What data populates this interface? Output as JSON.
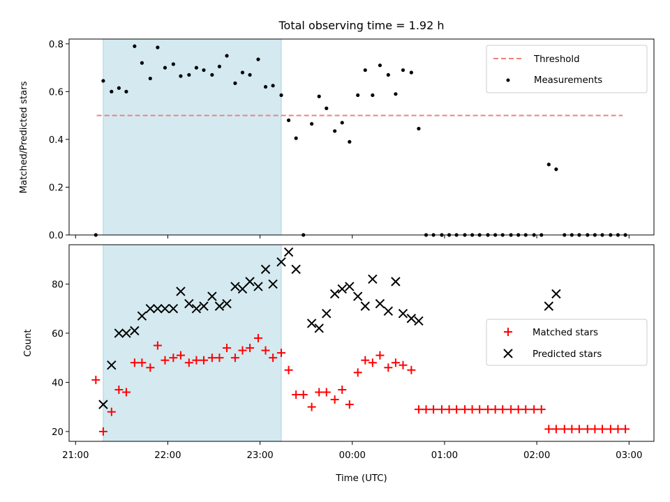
{
  "chart_data": {
    "title": "Total observing time = 1.92 h",
    "xlabel": "Time (UTC)",
    "x_unit": "hours since 00:00 UTC",
    "x_ticks": [
      {
        "value": -3,
        "label": "21:00"
      },
      {
        "value": -2,
        "label": "22:00"
      },
      {
        "value": -1,
        "label": "23:00"
      },
      {
        "value": 0,
        "label": "00:00"
      },
      {
        "value": 1,
        "label": "01:00"
      },
      {
        "value": 2,
        "label": "02:00"
      },
      {
        "value": 3,
        "label": "03:00"
      }
    ],
    "xlim": [
      -3.07,
      3.27
    ],
    "highlight_span": {
      "x_start": -2.7,
      "x_end": -0.77,
      "color": "#d4eaf0"
    },
    "panels": [
      {
        "type": "scatter",
        "ylabel": "Matched/Predicted stars",
        "ylim": [
          0,
          0.82
        ],
        "y_ticks": [
          0.0,
          0.2,
          0.4,
          0.6,
          0.8
        ],
        "y_tick_labels": [
          "0.0",
          "0.2",
          "0.4",
          "0.6",
          "0.8"
        ],
        "threshold": {
          "name": "Threshold",
          "value": 0.5,
          "x_start": -2.77,
          "x_end": 2.93,
          "color": "#f08080"
        },
        "series": [
          {
            "name": "Measurements",
            "color": "#000000",
            "marker": "dot",
            "x": [
              -2.78,
              -2.7,
              -2.61,
              -2.53,
              -2.45,
              -2.36,
              -2.28,
              -2.19,
              -2.11,
              -2.03,
              -1.94,
              -1.86,
              -1.77,
              -1.69,
              -1.61,
              -1.52,
              -1.44,
              -1.36,
              -1.27,
              -1.19,
              -1.11,
              -1.02,
              -0.94,
              -0.86,
              -0.77,
              -0.69,
              -0.61,
              -0.53,
              -0.44,
              -0.36,
              -0.28,
              -0.19,
              -0.11,
              -0.03,
              0.06,
              0.14,
              0.22,
              0.3,
              0.39,
              0.47,
              0.55,
              0.64,
              0.72,
              0.8,
              0.88,
              0.97,
              1.05,
              1.13,
              1.22,
              1.3,
              1.38,
              1.47,
              1.55,
              1.63,
              1.72,
              1.8,
              1.88,
              1.97,
              2.05,
              2.13,
              2.21,
              2.3,
              2.38,
              2.46,
              2.55,
              2.63,
              2.71,
              2.8,
              2.88,
              2.96
            ],
            "y": [
              0.0,
              0.645,
              0.6,
              0.615,
              0.6,
              0.79,
              0.72,
              0.655,
              0.785,
              0.7,
              0.715,
              0.665,
              0.67,
              0.7,
              0.69,
              0.67,
              0.705,
              0.75,
              0.635,
              0.68,
              0.67,
              0.735,
              0.62,
              0.625,
              0.585,
              0.48,
              0.405,
              0.0,
              0.465,
              0.58,
              0.53,
              0.435,
              0.47,
              0.39,
              0.585,
              0.69,
              0.585,
              0.71,
              0.67,
              0.59,
              0.69,
              0.68,
              0.445,
              0.0,
              0.0,
              0.0,
              0.0,
              0.0,
              0.0,
              0.0,
              0.0,
              0.0,
              0.0,
              0.0,
              0.0,
              0.0,
              0.0,
              0.0,
              0.0,
              0.295,
              0.275,
              0.0,
              0.0,
              0.0,
              0.0,
              0.0,
              0.0,
              0.0,
              0.0,
              0.0
            ]
          }
        ],
        "legend": {
          "position": "upper right",
          "entries": [
            "Threshold",
            "Measurements"
          ]
        }
      },
      {
        "type": "scatter",
        "ylabel": "Count",
        "ylim": [
          16,
          96
        ],
        "y_ticks": [
          20,
          40,
          60,
          80
        ],
        "y_tick_labels": [
          "20",
          "40",
          "60",
          "80"
        ],
        "series": [
          {
            "name": "Matched stars",
            "color": "#ff0000",
            "marker": "plus",
            "x": [
              -2.78,
              -2.7,
              -2.61,
              -2.53,
              -2.45,
              -2.36,
              -2.28,
              -2.19,
              -2.11,
              -2.03,
              -1.94,
              -1.86,
              -1.77,
              -1.69,
              -1.61,
              -1.52,
              -1.44,
              -1.36,
              -1.27,
              -1.19,
              -1.11,
              -1.02,
              -0.94,
              -0.86,
              -0.77,
              -0.69,
              -0.61,
              -0.53,
              -0.44,
              -0.36,
              -0.28,
              -0.19,
              -0.11,
              -0.03,
              0.06,
              0.14,
              0.22,
              0.3,
              0.39,
              0.47,
              0.55,
              0.64,
              0.72,
              0.8,
              0.88,
              0.97,
              1.05,
              1.13,
              1.22,
              1.3,
              1.38,
              1.47,
              1.55,
              1.63,
              1.72,
              1.8,
              1.88,
              1.97,
              2.05,
              2.13,
              2.21,
              2.3,
              2.38,
              2.46,
              2.55,
              2.63,
              2.71,
              2.8,
              2.88,
              2.96
            ],
            "y": [
              41,
              20,
              28,
              37,
              36,
              48,
              48,
              46,
              55,
              49,
              50,
              51,
              48,
              49,
              49,
              50,
              50,
              54,
              50,
              53,
              54,
              58,
              53,
              50,
              52,
              45,
              35,
              35,
              30,
              36,
              36,
              33,
              37,
              31,
              44,
              49,
              48,
              51,
              46,
              48,
              47,
              45,
              29,
              29,
              29,
              29,
              29,
              29,
              29,
              29,
              29,
              29,
              29,
              29,
              29,
              29,
              29,
              29,
              29,
              21,
              21,
              21,
              21,
              21,
              21,
              21,
              21,
              21,
              21,
              21
            ]
          },
          {
            "name": "Predicted stars",
            "color": "#000000",
            "marker": "x",
            "x": [
              -2.7,
              -2.61,
              -2.53,
              -2.45,
              -2.36,
              -2.28,
              -2.19,
              -2.11,
              -2.03,
              -1.94,
              -1.86,
              -1.77,
              -1.69,
              -1.61,
              -1.52,
              -1.44,
              -1.36,
              -1.27,
              -1.19,
              -1.11,
              -1.02,
              -0.94,
              -0.86,
              -0.77,
              -0.69,
              -0.61,
              -0.44,
              -0.36,
              -0.28,
              -0.19,
              -0.11,
              -0.03,
              0.06,
              0.14,
              0.22,
              0.3,
              0.39,
              0.47,
              0.55,
              0.64,
              0.72,
              2.13,
              2.21
            ],
            "y": [
              31,
              47,
              60,
              60,
              61,
              67,
              70,
              70,
              70,
              70,
              77,
              72,
              70,
              71,
              75,
              71,
              72,
              79,
              78,
              81,
              79,
              86,
              80,
              89,
              93,
              86,
              64,
              62,
              68,
              76,
              78,
              79,
              75,
              71,
              82,
              72,
              69,
              81,
              68,
              66,
              65,
              71,
              76
            ]
          }
        ],
        "legend": {
          "position": "center right",
          "entries": [
            "Matched stars",
            "Predicted stars"
          ]
        }
      }
    ]
  }
}
